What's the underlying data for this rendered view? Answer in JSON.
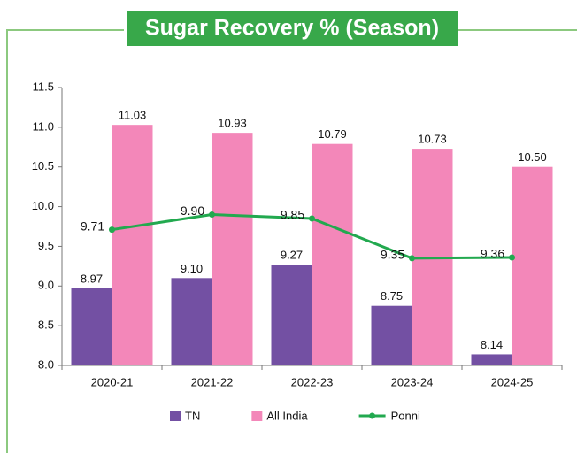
{
  "chart_data": {
    "type": "bar",
    "title": "Sugar Recovery % (Season)",
    "categories": [
      "2020-21",
      "2021-22",
      "2022-23",
      "2023-24",
      "2024-25"
    ],
    "series": [
      {
        "name": "TN",
        "color": "#7350a3",
        "values": [
          8.97,
          9.1,
          9.27,
          8.75,
          8.14
        ],
        "value_labels": [
          "8.97",
          "9.10",
          "9.27",
          "8.75",
          "8.14"
        ]
      },
      {
        "name": "All India",
        "color": "#f387b9",
        "values": [
          11.03,
          10.93,
          10.79,
          10.73,
          10.5
        ],
        "value_labels": [
          "11.03",
          "10.93",
          "10.79",
          "10.73",
          "10.50"
        ]
      },
      {
        "name": "Ponni",
        "type": "line",
        "color": "#22a94f",
        "values": [
          9.71,
          9.9,
          9.85,
          9.35,
          9.36
        ],
        "value_labels": [
          "9.71",
          "9.90",
          "9.85",
          "9.35",
          "9.36"
        ]
      }
    ],
    "ylim": [
      8.0,
      11.5
    ],
    "yticks": [
      {
        "value": 8.0,
        "label": "8.0"
      },
      {
        "value": 8.5,
        "label": "8.5"
      },
      {
        "value": 9.0,
        "label": "9.0"
      },
      {
        "value": 9.5,
        "label": "9.5"
      },
      {
        "value": 10.0,
        "label": "10.0"
      },
      {
        "value": 10.5,
        "label": "10.5"
      },
      {
        "value": 11.0,
        "label": "11.0"
      },
      {
        "value": 11.5,
        "label": "11.5"
      }
    ],
    "grid": false,
    "legend": "bottom"
  }
}
